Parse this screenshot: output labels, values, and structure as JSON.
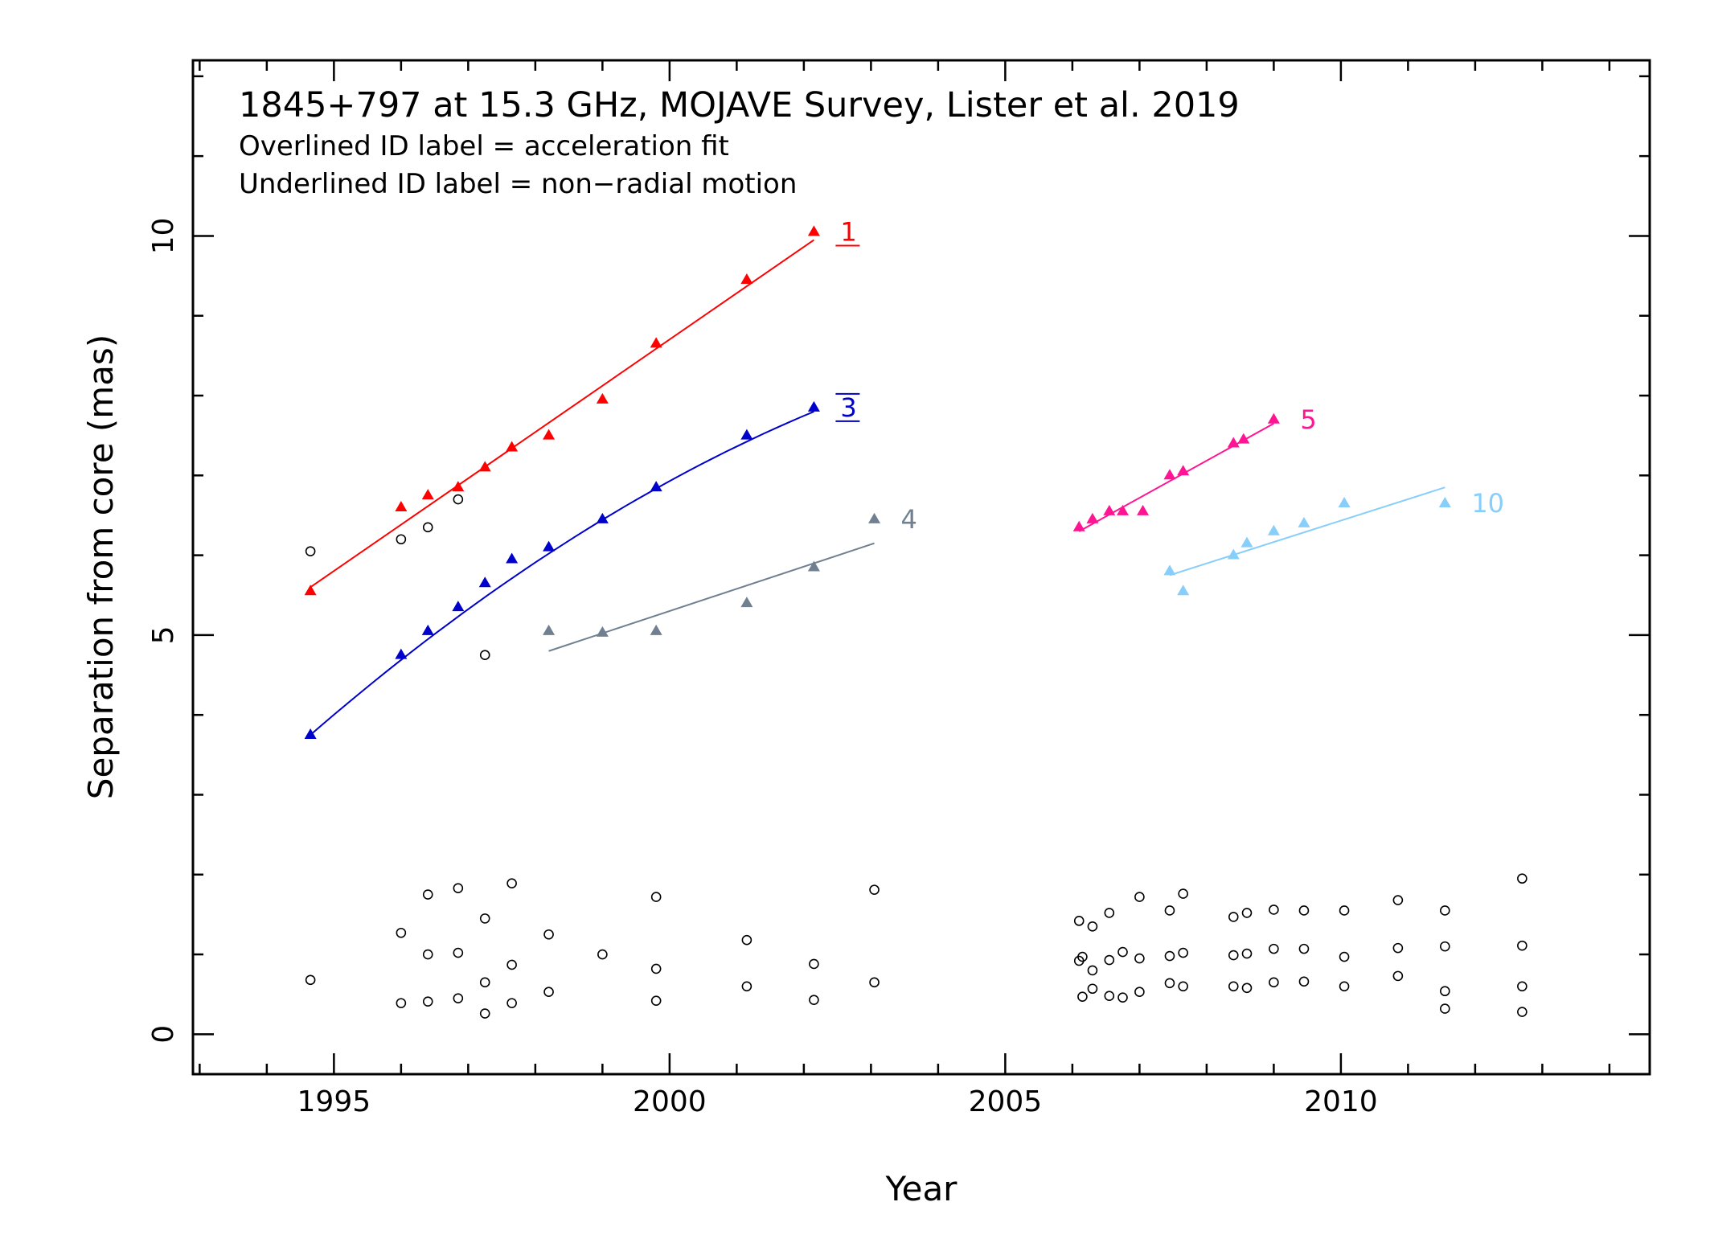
{
  "chart_data": {
    "type": "scatter",
    "title": "1845+797 at 15.3 GHz, MOJAVE Survey, Lister et al. 2019",
    "notes": [
      "Overlined ID label = acceleration fit",
      "Underlined ID label = non−radial motion"
    ],
    "xlabel": "Year",
    "ylabel": "Separation from core (mas)",
    "xlim": [
      1992.9,
      2014.6
    ],
    "ylim": [
      -0.5,
      12.2
    ],
    "xticks": [
      1995,
      2000,
      2005,
      2010
    ],
    "yticks": [
      0,
      5,
      10
    ],
    "series": [
      {
        "name": "1",
        "color": "#ff0000",
        "label_style": "underline",
        "fit": "linear",
        "x": [
          1994.65,
          1996.0,
          1996.4,
          1996.85,
          1997.25,
          1997.65,
          1998.2,
          1999.0,
          1999.8,
          2001.15,
          2002.15
        ],
        "y": [
          5.55,
          6.6,
          6.75,
          6.85,
          7.1,
          7.35,
          7.5,
          7.95,
          8.65,
          9.45,
          10.05
        ],
        "fit_line": {
          "x": [
            1994.65,
            2002.15
          ],
          "y": [
            5.6,
            9.95
          ]
        }
      },
      {
        "name": "3",
        "color": "#0000cc",
        "label_style": "overline",
        "fit": "acceleration",
        "x": [
          1994.65,
          1996.0,
          1996.4,
          1996.85,
          1997.25,
          1997.65,
          1998.2,
          1999.0,
          1999.8,
          2001.15,
          2002.15
        ],
        "y": [
          3.75,
          4.75,
          5.05,
          5.35,
          5.65,
          5.95,
          6.1,
          6.45,
          6.85,
          7.5,
          7.85
        ],
        "fit_line": {
          "x": [
            1994.65,
            2002.15
          ],
          "y": [
            3.75,
            7.8
          ],
          "peak": [
            2002.15,
            7.8
          ]
        }
      },
      {
        "name": "4",
        "color": "#708090",
        "label_style": "plain",
        "fit": "linear",
        "x": [
          1998.2,
          1999.0,
          1999.8,
          2001.15,
          2002.15,
          2003.05
        ],
        "y": [
          5.05,
          5.03,
          5.05,
          5.4,
          5.85,
          6.45
        ],
        "fit_line": {
          "x": [
            1998.2,
            2003.05
          ],
          "y": [
            4.8,
            6.15
          ]
        }
      },
      {
        "name": "5",
        "color": "#ff1493",
        "label_style": "plain",
        "fit": "linear",
        "x": [
          2006.1,
          2006.3,
          2006.55,
          2006.75,
          2007.05,
          2007.45,
          2007.65,
          2008.4,
          2008.55,
          2009.0
        ],
        "y": [
          6.35,
          6.45,
          6.55,
          6.55,
          6.55,
          7.0,
          7.05,
          7.4,
          7.45,
          7.7
        ],
        "fit_line": {
          "x": [
            2006.1,
            2009.0
          ],
          "y": [
            6.3,
            7.65
          ]
        }
      },
      {
        "name": "10",
        "color": "#87cefa",
        "label_style": "plain",
        "fit": "linear",
        "x": [
          2007.45,
          2007.65,
          2008.4,
          2008.6,
          2009.0,
          2009.45,
          2010.05,
          2011.55
        ],
        "y": [
          5.8,
          5.55,
          6.0,
          6.15,
          6.3,
          6.4,
          6.65,
          6.65
        ],
        "fit_line": {
          "x": [
            2007.45,
            2011.55
          ],
          "y": [
            5.75,
            6.85
          ]
        }
      },
      {
        "name": "",
        "color": "#000000",
        "marker": "open-circle",
        "x": [
          1994.65,
          1996.0,
          1996.4,
          1996.85,
          1997.25,
          1994.65,
          1996.0,
          1996.0,
          1996.4,
          1996.4,
          1996.4,
          1996.85,
          1996.85,
          1996.85,
          1997.25,
          1997.25,
          1997.25,
          1997.65,
          1997.65,
          1997.65,
          1998.2,
          1998.2,
          1999.0,
          1999.8,
          1999.8,
          1999.8,
          2001.15,
          2001.15,
          2002.15,
          2002.15,
          2003.05,
          2003.05,
          2006.1,
          2006.1,
          2006.15,
          2006.15,
          2006.3,
          2006.3,
          2006.3,
          2006.55,
          2006.55,
          2006.55,
          2006.75,
          2006.75,
          2007.0,
          2007.0,
          2007.0,
          2007.45,
          2007.45,
          2007.45,
          2007.65,
          2007.65,
          2007.65,
          2008.4,
          2008.4,
          2008.4,
          2008.6,
          2008.6,
          2008.6,
          2009.0,
          2009.0,
          2009.0,
          2009.45,
          2009.45,
          2009.45,
          2010.05,
          2010.05,
          2010.05,
          2010.85,
          2010.85,
          2010.85,
          2011.55,
          2011.55,
          2011.55,
          2011.55,
          2012.7,
          2012.7,
          2012.7,
          2012.7
        ],
        "y": [
          6.05,
          6.2,
          6.35,
          6.7,
          4.75,
          0.68,
          1.27,
          0.39,
          1.75,
          1.0,
          0.41,
          1.83,
          1.02,
          0.45,
          1.45,
          0.65,
          0.26,
          1.89,
          0.87,
          0.39,
          1.25,
          0.53,
          1.0,
          1.72,
          0.82,
          0.42,
          1.18,
          0.6,
          0.88,
          0.43,
          1.81,
          0.65,
          1.42,
          0.92,
          0.97,
          0.47,
          1.35,
          0.57,
          0.8,
          1.52,
          0.93,
          0.48,
          1.03,
          0.46,
          1.72,
          0.95,
          0.53,
          1.55,
          0.98,
          0.64,
          1.76,
          1.02,
          0.6,
          1.47,
          0.99,
          0.6,
          1.52,
          1.01,
          0.58,
          1.56,
          1.07,
          0.65,
          1.55,
          1.07,
          0.66,
          1.55,
          0.97,
          0.6,
          1.68,
          1.08,
          0.73,
          1.55,
          1.1,
          0.54,
          0.32,
          1.95,
          1.11,
          0.6,
          0.28
        ]
      }
    ]
  }
}
